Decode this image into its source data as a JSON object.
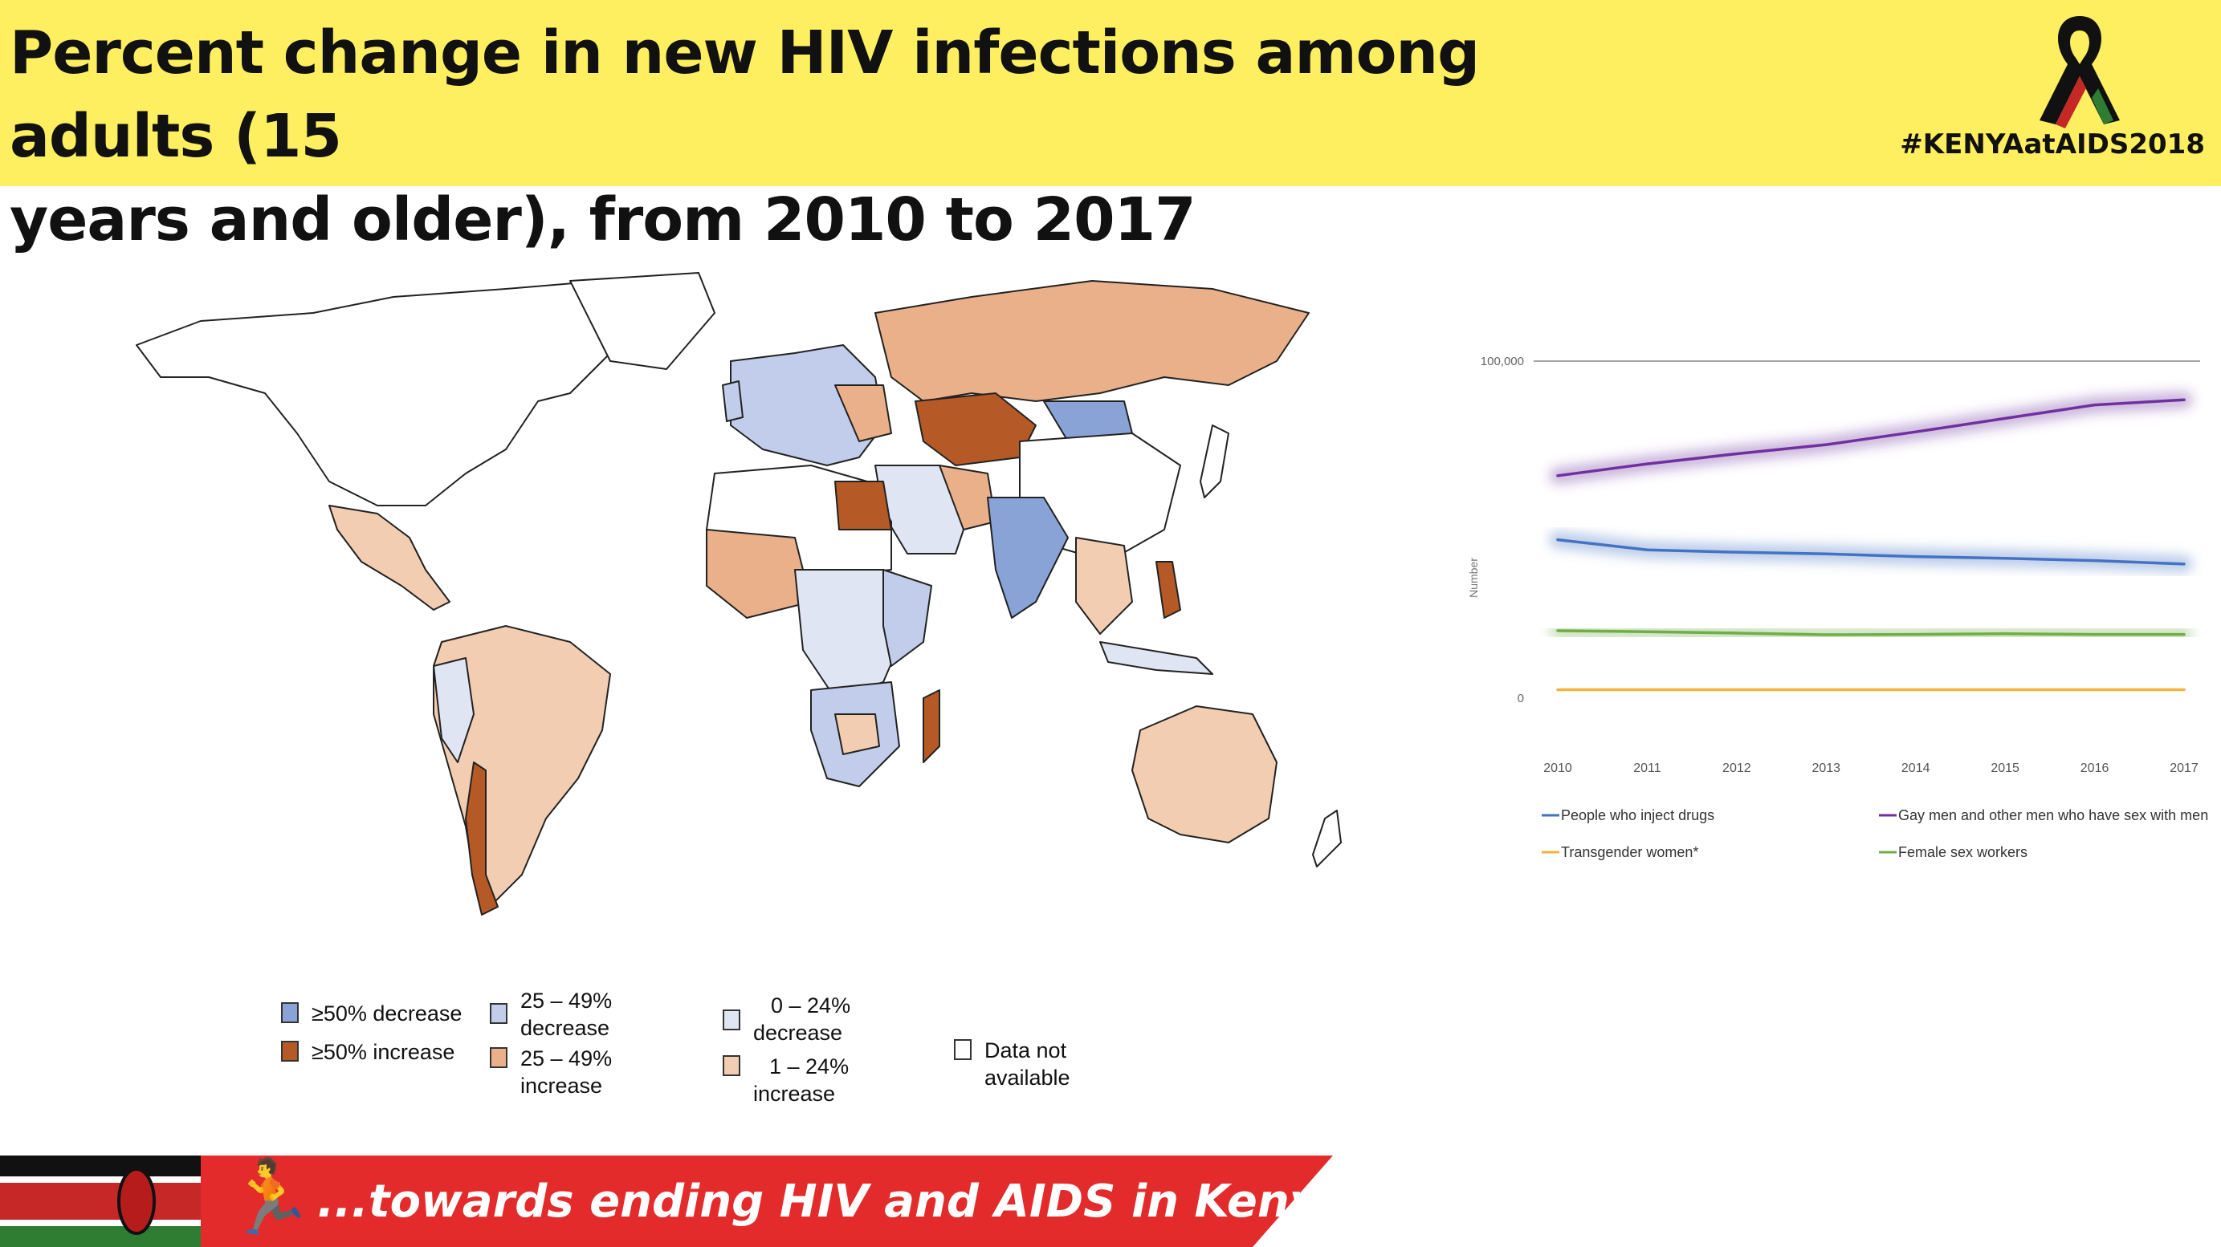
{
  "header": {
    "title_line1": "Percent change in new HIV infections among adults (15",
    "title_line2": "years and older), from 2010 to 2017",
    "hashtag": "#KENYAatAIDS2018"
  },
  "colors": {
    "header_bg": "#fdef5f",
    "footer_red": "#e32b2b",
    "decrease_50": "#8aa3d6",
    "decrease_25_49": "#c1cdea",
    "decrease_0_24": "#dfe5f3",
    "increase_50": "#b55a26",
    "increase_25_49": "#eab08a",
    "increase_1_24": "#f2cdb2"
  },
  "legend": {
    "items": [
      {
        "label": "≥50% decrease",
        "color": "#8aa3d6"
      },
      {
        "label": "≥50% increase",
        "color": "#b55a26"
      },
      {
        "label": "25 – 49% decrease",
        "color": "#c1cdea"
      },
      {
        "label": "25 – 49% increase",
        "color": "#eab08a"
      },
      {
        "label": "0 – 24% decrease",
        "color": "#dfe5f3"
      },
      {
        "label": "1 – 24% increase",
        "color": "#f2cdb2"
      },
      {
        "label": "Data not available",
        "color": "#ffffff"
      }
    ],
    "label_0": "≥50% decrease",
    "label_1": "≥50% increase",
    "label_2a": "25 – 49%",
    "label_2b": "decrease",
    "label_3a": "25 – 49%",
    "label_3b": "increase",
    "label_4a": "0 – 24%",
    "label_4b": "decrease",
    "label_5a": "1 – 24%",
    "label_5b": "increase",
    "label_6a": "Data  not",
    "label_6b": "available"
  },
  "chart_data": {
    "type": "line",
    "x": [
      "2010",
      "2011",
      "2012",
      "2013",
      "2014",
      "2015",
      "2016",
      "2017"
    ],
    "ylabel": "Number",
    "ylim": [
      0,
      100000
    ],
    "yticks": [
      "0",
      "100,000"
    ],
    "grid": false,
    "legend_position": "bottom",
    "series": [
      {
        "name": "People who inject drugs",
        "color": "#4472c4",
        "values": [
          47000,
          44000,
          43300,
          42800,
          42000,
          41500,
          40800,
          39800
        ]
      },
      {
        "name": "Gay men and other men who have sex with men",
        "color": "#7030a0",
        "values": [
          66000,
          69500,
          72500,
          75200,
          79000,
          83000,
          87000,
          88500
        ]
      },
      {
        "name": "Transgender women*",
        "color": "#f2b53a",
        "values": [
          2500,
          2500,
          2500,
          2500,
          2500,
          2500,
          2500,
          2500
        ]
      },
      {
        "name": "Female sex workers",
        "color": "#70ad47",
        "values": [
          20000,
          19700,
          19300,
          18800,
          18900,
          19100,
          18900,
          18900
        ]
      }
    ]
  },
  "footer": {
    "tagline": "...towards ending HIV and AIDS in Kenya"
  }
}
